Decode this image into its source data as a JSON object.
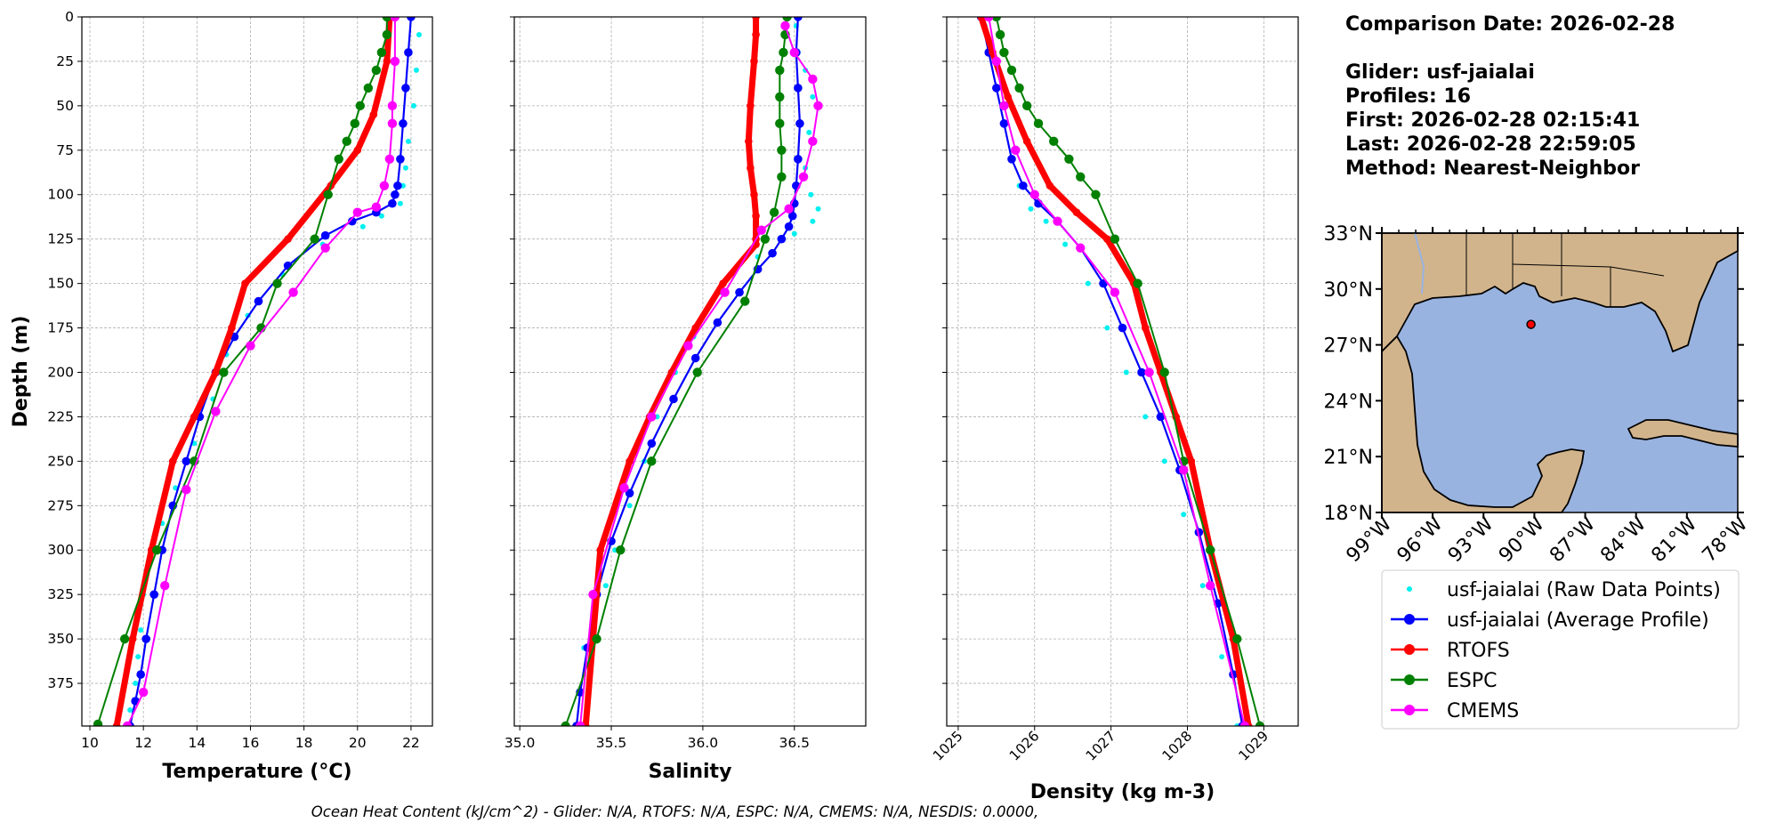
{
  "info": {
    "comparison_date": "Comparison Date: 2026-02-28",
    "glider": "Glider: usf-jaialai",
    "profiles": "Profiles: 16",
    "first": "First: 2026-02-28 02:15:41",
    "last": "Last: 2026-02-28 22:59:05",
    "method": "Method: Nearest-Neighbor"
  },
  "footer": "Ocean Heat Content (kJ/cm^2) - Glider: N/A,  RTOFS: N/A,  ESPC: N/A,  CMEMS: N/A,  NESDIS: 0.0000,",
  "colors": {
    "raw": "#00f0f0",
    "average": "#0000ff",
    "rtofs": "#ff0000",
    "espc": "#008000",
    "cmems": "#ff00ff",
    "land": "#d2b48c",
    "ocean": "#99b3e0"
  },
  "legend": [
    {
      "key": "raw",
      "label": "usf-jaialai (Raw Data Points)"
    },
    {
      "key": "average",
      "label": "usf-jaialai (Average Profile)"
    },
    {
      "key": "rtofs",
      "label": "RTOFS"
    },
    {
      "key": "espc",
      "label": "ESPC"
    },
    {
      "key": "cmems",
      "label": "CMEMS"
    }
  ],
  "map": {
    "lat_labels": [
      "33°N",
      "30°N",
      "27°N",
      "24°N",
      "21°N",
      "18°N"
    ],
    "lat_values": [
      33,
      30,
      27,
      24,
      21,
      18
    ],
    "lon_labels": [
      "99°W",
      "96°W",
      "93°W",
      "90°W",
      "87°W",
      "84°W",
      "81°W",
      "78°W"
    ],
    "lon_values": [
      -99,
      -96,
      -93,
      -90,
      -87,
      -84,
      -81,
      -78
    ],
    "glider_location": {
      "lat": 28.1,
      "lon": -90.2
    }
  },
  "chart_data": [
    {
      "type": "line",
      "xlabel": "Temperature (°C)",
      "ylabel": "Depth (m)",
      "xlim": [
        9.7,
        22.8
      ],
      "ylim": [
        399,
        0
      ],
      "xticks": [
        10,
        12,
        14,
        16,
        18,
        20,
        22
      ],
      "yticks": [
        0,
        25,
        50,
        75,
        100,
        125,
        150,
        175,
        200,
        225,
        250,
        275,
        300,
        325,
        350,
        375
      ],
      "grid": true,
      "series": [
        {
          "name": "usf-jaialai (Raw Data Points)",
          "key": "raw",
          "x": [
            22.3,
            22.2,
            22.1,
            21.9,
            21.8,
            21.7,
            21.6,
            20.9,
            20.2,
            18.7,
            17.2,
            15.9,
            15.1,
            14.6,
            13.9,
            13.2,
            12.7,
            12.3,
            12.0,
            11.9,
            11.8,
            11.7,
            11.5,
            11.4
          ],
          "y": [
            10,
            30,
            50,
            70,
            85,
            95,
            105,
            112,
            118,
            128,
            145,
            168,
            190,
            215,
            240,
            265,
            285,
            305,
            325,
            345,
            360,
            375,
            390,
            399
          ]
        },
        {
          "name": "usf-jaialai (Average Profile)",
          "key": "average",
          "x": [
            22.0,
            21.9,
            21.8,
            21.7,
            21.6,
            21.5,
            21.4,
            21.3,
            20.7,
            19.8,
            18.8,
            17.4,
            16.3,
            15.4,
            14.7,
            14.1,
            13.6,
            13.1,
            12.7,
            12.4,
            12.1,
            11.9,
            11.7,
            11.5
          ],
          "y": [
            0,
            20,
            40,
            60,
            80,
            95,
            100,
            105,
            110,
            115,
            123,
            140,
            160,
            180,
            200,
            225,
            250,
            275,
            300,
            325,
            350,
            370,
            385,
            399
          ]
        },
        {
          "name": "RTOFS",
          "key": "rtofs",
          "x": [
            21.2,
            21.1,
            20.6,
            20.0,
            19.0,
            17.4,
            15.8,
            15.3,
            14.7,
            13.9,
            13.1,
            12.3,
            11.6,
            11.0
          ],
          "y": [
            0,
            25,
            55,
            75,
            95,
            125,
            150,
            175,
            200,
            225,
            250,
            300,
            350,
            399
          ]
        },
        {
          "name": "ESPC",
          "key": "espc",
          "x": [
            21.1,
            21.1,
            20.9,
            20.7,
            20.4,
            20.1,
            19.9,
            19.6,
            19.3,
            18.9,
            18.4,
            17.0,
            16.4,
            15.0,
            13.9,
            12.5,
            11.3,
            10.3
          ],
          "y": [
            0,
            10,
            20,
            30,
            40,
            50,
            60,
            70,
            80,
            100,
            125,
            150,
            175,
            200,
            250,
            300,
            350,
            398
          ]
        },
        {
          "name": "CMEMS",
          "key": "cmems",
          "x": [
            21.4,
            21.4,
            21.3,
            21.3,
            21.2,
            21.0,
            20.7,
            20.0,
            18.8,
            17.6,
            16.0,
            14.7,
            13.6,
            12.8,
            12.0,
            11.4
          ],
          "y": [
            0,
            25,
            50,
            60,
            80,
            95,
            107,
            110,
            130,
            155,
            185,
            222,
            266,
            320,
            380,
            399
          ]
        }
      ]
    },
    {
      "type": "line",
      "xlabel": "Salinity",
      "ylabel": "",
      "xlim": [
        34.97,
        36.89
      ],
      "ylim": [
        399,
        0
      ],
      "xticks": [
        35.0,
        35.5,
        36.0,
        36.5
      ],
      "grid": true,
      "series": [
        {
          "name": "usf-jaialai (Raw Data Points)",
          "key": "raw",
          "x": [
            36.51,
            36.52,
            36.56,
            36.6,
            36.58,
            36.56,
            36.59,
            36.63,
            36.6,
            36.5,
            36.3,
            36.1,
            35.95,
            35.85,
            35.75,
            35.68,
            35.6,
            35.52,
            35.47,
            35.4,
            35.35,
            35.33
          ],
          "y": [
            5,
            20,
            30,
            45,
            65,
            85,
            100,
            108,
            115,
            122,
            135,
            155,
            180,
            200,
            225,
            250,
            275,
            300,
            320,
            340,
            355,
            399
          ]
        },
        {
          "name": "usf-jaialai (Average Profile)",
          "key": "average",
          "x": [
            36.52,
            36.51,
            36.52,
            36.53,
            36.52,
            36.51,
            36.5,
            36.49,
            36.47,
            36.43,
            36.38,
            36.3,
            36.2,
            36.08,
            35.96,
            35.84,
            35.72,
            35.6,
            35.5,
            35.42,
            35.37,
            35.33,
            35.31
          ],
          "y": [
            0,
            20,
            40,
            60,
            80,
            95,
            105,
            112,
            118,
            125,
            133,
            142,
            155,
            172,
            192,
            215,
            240,
            268,
            295,
            325,
            355,
            380,
            399
          ]
        },
        {
          "name": "RTOFS",
          "key": "rtofs",
          "x": [
            36.29,
            36.29,
            36.28,
            36.26,
            36.25,
            36.26,
            36.28,
            36.29,
            36.29,
            36.29,
            36.11,
            35.96,
            35.83,
            35.71,
            35.6,
            35.44,
            35.36
          ],
          "y": [
            0,
            10,
            25,
            50,
            70,
            85,
            100,
            112,
            125,
            128,
            150,
            175,
            200,
            225,
            250,
            300,
            399
          ]
        },
        {
          "name": "ESPC",
          "key": "espc",
          "x": [
            36.46,
            36.45,
            36.44,
            36.42,
            36.42,
            36.42,
            36.43,
            36.43,
            36.39,
            36.34,
            36.23,
            35.97,
            35.72,
            35.55,
            35.42,
            35.25
          ],
          "y": [
            0,
            10,
            20,
            30,
            45,
            60,
            75,
            90,
            110,
            125,
            160,
            200,
            250,
            300,
            350,
            399
          ]
        },
        {
          "name": "CMEMS",
          "key": "cmems",
          "x": [
            36.45,
            36.5,
            36.6,
            36.63,
            36.6,
            36.55,
            36.47,
            36.32,
            36.12,
            35.92,
            35.72,
            35.57,
            35.4,
            35.33
          ],
          "y": [
            5,
            20,
            35,
            50,
            70,
            90,
            108,
            120,
            155,
            185,
            225,
            265,
            325,
            399
          ]
        }
      ]
    },
    {
      "type": "line",
      "xlabel": "Density (kg m-3)",
      "ylabel": "",
      "xlim": [
        1024.85,
        1029.45
      ],
      "ylim": [
        399,
        0
      ],
      "xticks": [
        1025,
        1026,
        1027,
        1028,
        1029
      ],
      "grid": true,
      "series": [
        {
          "name": "usf-jaialai (Raw Data Points)",
          "key": "raw",
          "x": [
            1025.35,
            1025.4,
            1025.5,
            1025.6,
            1025.7,
            1025.8,
            1025.95,
            1026.15,
            1026.4,
            1026.7,
            1026.95,
            1027.2,
            1027.45,
            1027.7,
            1027.95,
            1028.2,
            1028.45,
            1028.65
          ],
          "y": [
            5,
            20,
            40,
            60,
            80,
            95,
            108,
            115,
            128,
            150,
            175,
            200,
            225,
            250,
            280,
            320,
            360,
            399
          ]
        },
        {
          "name": "usf-jaialai (Average Profile)",
          "key": "average",
          "x": [
            1025.3,
            1025.4,
            1025.5,
            1025.6,
            1025.7,
            1025.85,
            1026.05,
            1026.3,
            1026.6,
            1026.9,
            1027.15,
            1027.4,
            1027.65,
            1027.9,
            1028.15,
            1028.4,
            1028.6,
            1028.72
          ],
          "y": [
            0,
            20,
            40,
            60,
            80,
            95,
            105,
            115,
            130,
            150,
            175,
            200,
            225,
            255,
            290,
            330,
            370,
            399
          ]
        },
        {
          "name": "RTOFS",
          "key": "rtofs",
          "x": [
            1025.3,
            1025.45,
            1025.65,
            1025.9,
            1026.2,
            1026.55,
            1026.95,
            1027.3,
            1027.45,
            1027.65,
            1027.85,
            1028.05,
            1028.3,
            1028.6,
            1028.8
          ],
          "y": [
            0,
            20,
            45,
            70,
            95,
            110,
            125,
            150,
            175,
            200,
            225,
            250,
            300,
            350,
            399
          ]
        },
        {
          "name": "ESPC",
          "key": "espc",
          "x": [
            1025.5,
            1025.55,
            1025.6,
            1025.7,
            1025.8,
            1025.9,
            1026.05,
            1026.25,
            1026.45,
            1026.6,
            1026.8,
            1027.05,
            1027.35,
            1027.7,
            1027.95,
            1028.3,
            1028.65,
            1028.95
          ],
          "y": [
            0,
            10,
            20,
            30,
            40,
            50,
            60,
            70,
            80,
            90,
            100,
            125,
            150,
            200,
            250,
            300,
            350,
            399
          ]
        },
        {
          "name": "CMEMS",
          "key": "cmems",
          "x": [
            1025.4,
            1025.5,
            1025.6,
            1025.75,
            1026.0,
            1026.3,
            1026.6,
            1027.05,
            1027.5,
            1027.95,
            1028.3,
            1028.75
          ],
          "y": [
            0,
            25,
            50,
            75,
            100,
            115,
            130,
            155,
            200,
            255,
            320,
            399
          ]
        }
      ]
    }
  ]
}
